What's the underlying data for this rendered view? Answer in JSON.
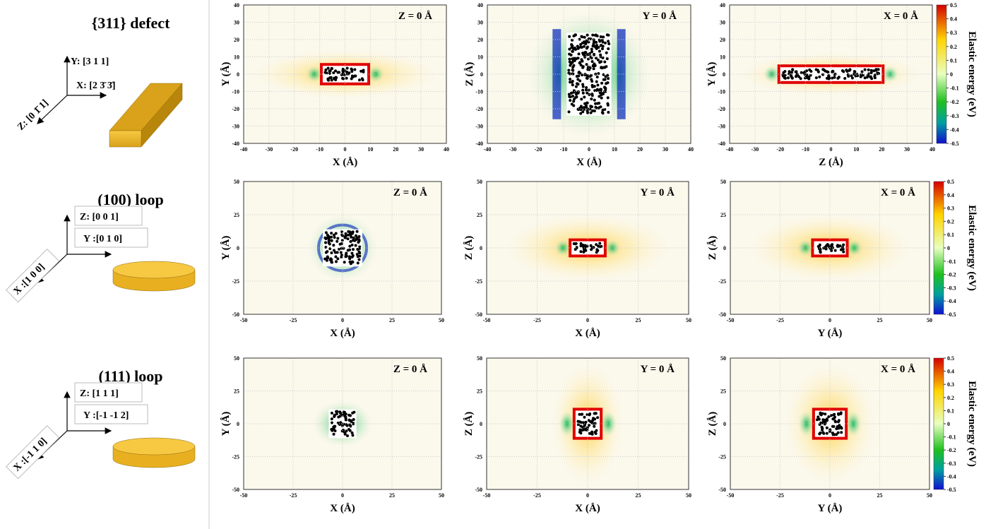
{
  "rows": [
    {
      "title": "{311} defect",
      "axis_labels": {
        "y": "Y: [3 1 1]",
        "x": "X: [2 3̄ 3̄]",
        "z": "Z: [0 1̄ 1]"
      },
      "panels": [
        {
          "slice": "Z = 0 Å",
          "xlabel": "X (Å)",
          "ylabel": "Y (Å)",
          "xticks": [
            -40,
            -30,
            -20,
            -10,
            0,
            10,
            20,
            30,
            40
          ],
          "yticks": [
            -40,
            -30,
            -20,
            -10,
            0,
            10,
            20,
            30,
            40
          ]
        },
        {
          "slice": "Y = 0 Å",
          "xlabel": "X (Å)",
          "ylabel": "Z (Å)",
          "xticks": [
            -40,
            -30,
            -20,
            -10,
            0,
            10,
            20,
            30,
            40
          ],
          "yticks": [
            -40,
            -30,
            -20,
            -10,
            0,
            10,
            20,
            30,
            40
          ]
        },
        {
          "slice": "X = 0 Å",
          "xlabel": "Z (Å)",
          "ylabel": "Y (Å)",
          "xticks": [
            -40,
            -30,
            -20,
            -10,
            0,
            10,
            20,
            30,
            40
          ],
          "yticks": [
            -40,
            -30,
            -20,
            -10,
            0,
            10,
            20,
            30,
            40
          ]
        }
      ],
      "colorbar": {
        "label": "Elastic energy (eV)",
        "ticks": [
          0.5,
          0.4,
          0.3,
          0.2,
          0.1,
          0,
          -0.1,
          -0.2,
          -0.3,
          -0.4,
          -0.5
        ]
      }
    },
    {
      "title": "(100) loop",
      "axis_labels": {
        "y": "Z: [0 0 1]",
        "x": "Y :[0 1 0]",
        "z": "X :[1 0 0]"
      },
      "panels": [
        {
          "slice": "Z = 0 Å",
          "xlabel": "X (Å)",
          "ylabel": "Y (Å)",
          "xticks": [
            -50,
            -25,
            0,
            25,
            50
          ],
          "yticks": [
            -50,
            -25,
            0,
            25,
            50
          ]
        },
        {
          "slice": "Y = 0 Å",
          "xlabel": "X (Å)",
          "ylabel": "Z (Å)",
          "xticks": [
            -50,
            -25,
            0,
            25,
            50
          ],
          "yticks": [
            -50,
            -25,
            0,
            25,
            50
          ]
        },
        {
          "slice": "X = 0 Å",
          "xlabel": "Y (Å)",
          "ylabel": "Z (Å)",
          "xticks": [
            -50,
            -25,
            0,
            25,
            50
          ],
          "yticks": [
            -50,
            -25,
            0,
            25,
            50
          ]
        }
      ],
      "colorbar": {
        "label": "Elastic energy (eV)",
        "ticks": [
          0.5,
          0.4,
          0.3,
          0.2,
          0.1,
          0,
          -0.1,
          -0.2,
          -0.3,
          -0.4,
          -0.5
        ]
      }
    },
    {
      "title": "(111) loop",
      "axis_labels": {
        "y": "Z: [1 1 1]",
        "x": "Y :[-1 -1 2]",
        "z": "X :[-1 1 0]"
      },
      "panels": [
        {
          "slice": "Z = 0 Å",
          "xlabel": "X (Å)",
          "ylabel": "Y (Å)",
          "xticks": [
            -50,
            -25,
            0,
            25,
            50
          ],
          "yticks": [
            -50,
            -25,
            0,
            25,
            50
          ]
        },
        {
          "slice": "Y = 0 Å",
          "xlabel": "X (Å)",
          "ylabel": "Z (Å)",
          "xticks": [
            -50,
            -25,
            0,
            25,
            50
          ],
          "yticks": [
            -50,
            -25,
            0,
            25,
            50
          ]
        },
        {
          "slice": "X = 0 Å",
          "xlabel": "Y (Å)",
          "ylabel": "Z (Å)",
          "xticks": [
            -50,
            -25,
            0,
            25,
            50
          ],
          "yticks": [
            -50,
            -25,
            0,
            25,
            50
          ]
        }
      ],
      "colorbar": {
        "label": "Elastic energy (eV)",
        "ticks": [
          0.5,
          0.4,
          0.3,
          0.2,
          0.1,
          0,
          -0.1,
          -0.2,
          -0.3,
          -0.4,
          -0.5
        ]
      }
    }
  ]
}
